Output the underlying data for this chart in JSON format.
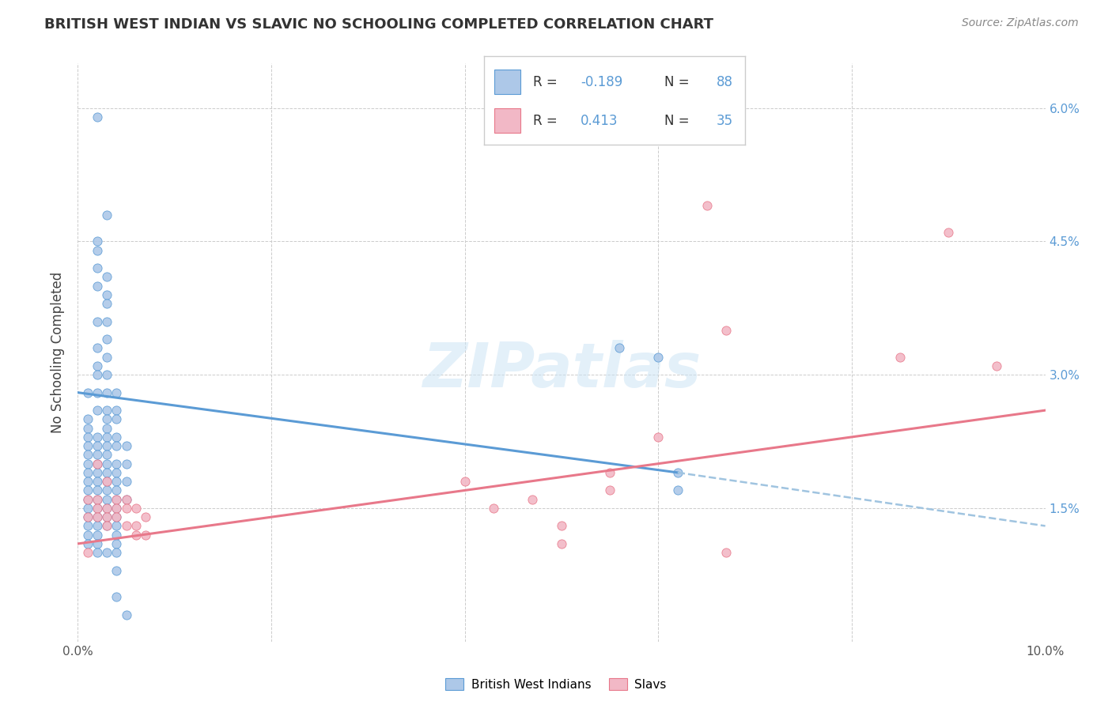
{
  "title": "BRITISH WEST INDIAN VS SLAVIC NO SCHOOLING COMPLETED CORRELATION CHART",
  "source": "Source: ZipAtlas.com",
  "ylabel": "No Schooling Completed",
  "xlim": [
    0.0,
    0.1
  ],
  "ylim": [
    0.0,
    0.065
  ],
  "xtick_vals": [
    0.0,
    0.02,
    0.04,
    0.06,
    0.08,
    0.1
  ],
  "xtick_labels": [
    "0.0%",
    "",
    "",
    "",
    "",
    "10.0%"
  ],
  "ytick_vals": [
    0.015,
    0.03,
    0.045,
    0.06
  ],
  "ytick_labels_right": [
    "1.5%",
    "3.0%",
    "4.5%",
    "6.0%"
  ],
  "color_blue": "#adc8e8",
  "color_pink": "#f2b8c6",
  "line_blue": "#5b9bd5",
  "line_pink": "#e8788a",
  "line_dashed_color": "#a0c4e0",
  "watermark_text": "ZIPatlas",
  "blue_scatter": [
    [
      0.002,
      0.059
    ],
    [
      0.003,
      0.048
    ],
    [
      0.002,
      0.045
    ],
    [
      0.002,
      0.044
    ],
    [
      0.002,
      0.042
    ],
    [
      0.003,
      0.041
    ],
    [
      0.002,
      0.04
    ],
    [
      0.003,
      0.039
    ],
    [
      0.003,
      0.038
    ],
    [
      0.003,
      0.036
    ],
    [
      0.002,
      0.036
    ],
    [
      0.003,
      0.034
    ],
    [
      0.002,
      0.033
    ],
    [
      0.003,
      0.032
    ],
    [
      0.002,
      0.031
    ],
    [
      0.003,
      0.03
    ],
    [
      0.002,
      0.03
    ],
    [
      0.003,
      0.028
    ],
    [
      0.002,
      0.028
    ],
    [
      0.001,
      0.028
    ],
    [
      0.004,
      0.028
    ],
    [
      0.003,
      0.026
    ],
    [
      0.002,
      0.026
    ],
    [
      0.004,
      0.026
    ],
    [
      0.001,
      0.025
    ],
    [
      0.003,
      0.025
    ],
    [
      0.004,
      0.025
    ],
    [
      0.001,
      0.024
    ],
    [
      0.003,
      0.024
    ],
    [
      0.001,
      0.023
    ],
    [
      0.002,
      0.023
    ],
    [
      0.003,
      0.023
    ],
    [
      0.004,
      0.023
    ],
    [
      0.001,
      0.022
    ],
    [
      0.002,
      0.022
    ],
    [
      0.003,
      0.022
    ],
    [
      0.004,
      0.022
    ],
    [
      0.005,
      0.022
    ],
    [
      0.001,
      0.021
    ],
    [
      0.002,
      0.021
    ],
    [
      0.003,
      0.021
    ],
    [
      0.001,
      0.02
    ],
    [
      0.002,
      0.02
    ],
    [
      0.003,
      0.02
    ],
    [
      0.004,
      0.02
    ],
    [
      0.005,
      0.02
    ],
    [
      0.001,
      0.019
    ],
    [
      0.002,
      0.019
    ],
    [
      0.003,
      0.019
    ],
    [
      0.004,
      0.019
    ],
    [
      0.001,
      0.018
    ],
    [
      0.002,
      0.018
    ],
    [
      0.003,
      0.018
    ],
    [
      0.004,
      0.018
    ],
    [
      0.005,
      0.018
    ],
    [
      0.001,
      0.017
    ],
    [
      0.002,
      0.017
    ],
    [
      0.003,
      0.017
    ],
    [
      0.004,
      0.017
    ],
    [
      0.001,
      0.016
    ],
    [
      0.002,
      0.016
    ],
    [
      0.003,
      0.016
    ],
    [
      0.004,
      0.016
    ],
    [
      0.005,
      0.016
    ],
    [
      0.001,
      0.015
    ],
    [
      0.002,
      0.015
    ],
    [
      0.003,
      0.015
    ],
    [
      0.004,
      0.015
    ],
    [
      0.001,
      0.014
    ],
    [
      0.002,
      0.014
    ],
    [
      0.003,
      0.014
    ],
    [
      0.004,
      0.014
    ],
    [
      0.001,
      0.013
    ],
    [
      0.002,
      0.013
    ],
    [
      0.003,
      0.013
    ],
    [
      0.004,
      0.013
    ],
    [
      0.001,
      0.012
    ],
    [
      0.002,
      0.012
    ],
    [
      0.004,
      0.012
    ],
    [
      0.001,
      0.011
    ],
    [
      0.002,
      0.011
    ],
    [
      0.004,
      0.011
    ],
    [
      0.002,
      0.01
    ],
    [
      0.003,
      0.01
    ],
    [
      0.004,
      0.01
    ],
    [
      0.004,
      0.008
    ],
    [
      0.004,
      0.005
    ],
    [
      0.005,
      0.003
    ],
    [
      0.056,
      0.033
    ],
    [
      0.06,
      0.032
    ],
    [
      0.062,
      0.019
    ],
    [
      0.062,
      0.017
    ]
  ],
  "pink_scatter": [
    [
      0.001,
      0.016
    ],
    [
      0.001,
      0.014
    ],
    [
      0.002,
      0.02
    ],
    [
      0.002,
      0.016
    ],
    [
      0.002,
      0.015
    ],
    [
      0.002,
      0.014
    ],
    [
      0.003,
      0.018
    ],
    [
      0.003,
      0.015
    ],
    [
      0.003,
      0.014
    ],
    [
      0.003,
      0.013
    ],
    [
      0.004,
      0.016
    ],
    [
      0.004,
      0.015
    ],
    [
      0.004,
      0.014
    ],
    [
      0.005,
      0.016
    ],
    [
      0.005,
      0.015
    ],
    [
      0.005,
      0.013
    ],
    [
      0.006,
      0.015
    ],
    [
      0.006,
      0.013
    ],
    [
      0.006,
      0.012
    ],
    [
      0.007,
      0.014
    ],
    [
      0.007,
      0.012
    ],
    [
      0.001,
      0.01
    ],
    [
      0.04,
      0.018
    ],
    [
      0.043,
      0.015
    ],
    [
      0.047,
      0.016
    ],
    [
      0.05,
      0.013
    ],
    [
      0.05,
      0.011
    ],
    [
      0.055,
      0.019
    ],
    [
      0.055,
      0.017
    ],
    [
      0.06,
      0.023
    ],
    [
      0.065,
      0.049
    ],
    [
      0.067,
      0.035
    ],
    [
      0.067,
      0.01
    ],
    [
      0.085,
      0.032
    ],
    [
      0.09,
      0.046
    ],
    [
      0.095,
      0.031
    ]
  ],
  "blue_line_x": [
    0.0,
    0.062
  ],
  "blue_line_y": [
    0.028,
    0.019
  ],
  "pink_line_x": [
    0.0,
    0.1
  ],
  "pink_line_y": [
    0.011,
    0.026
  ],
  "dashed_line_x": [
    0.062,
    0.1
  ],
  "dashed_line_y": [
    0.019,
    0.013
  ]
}
